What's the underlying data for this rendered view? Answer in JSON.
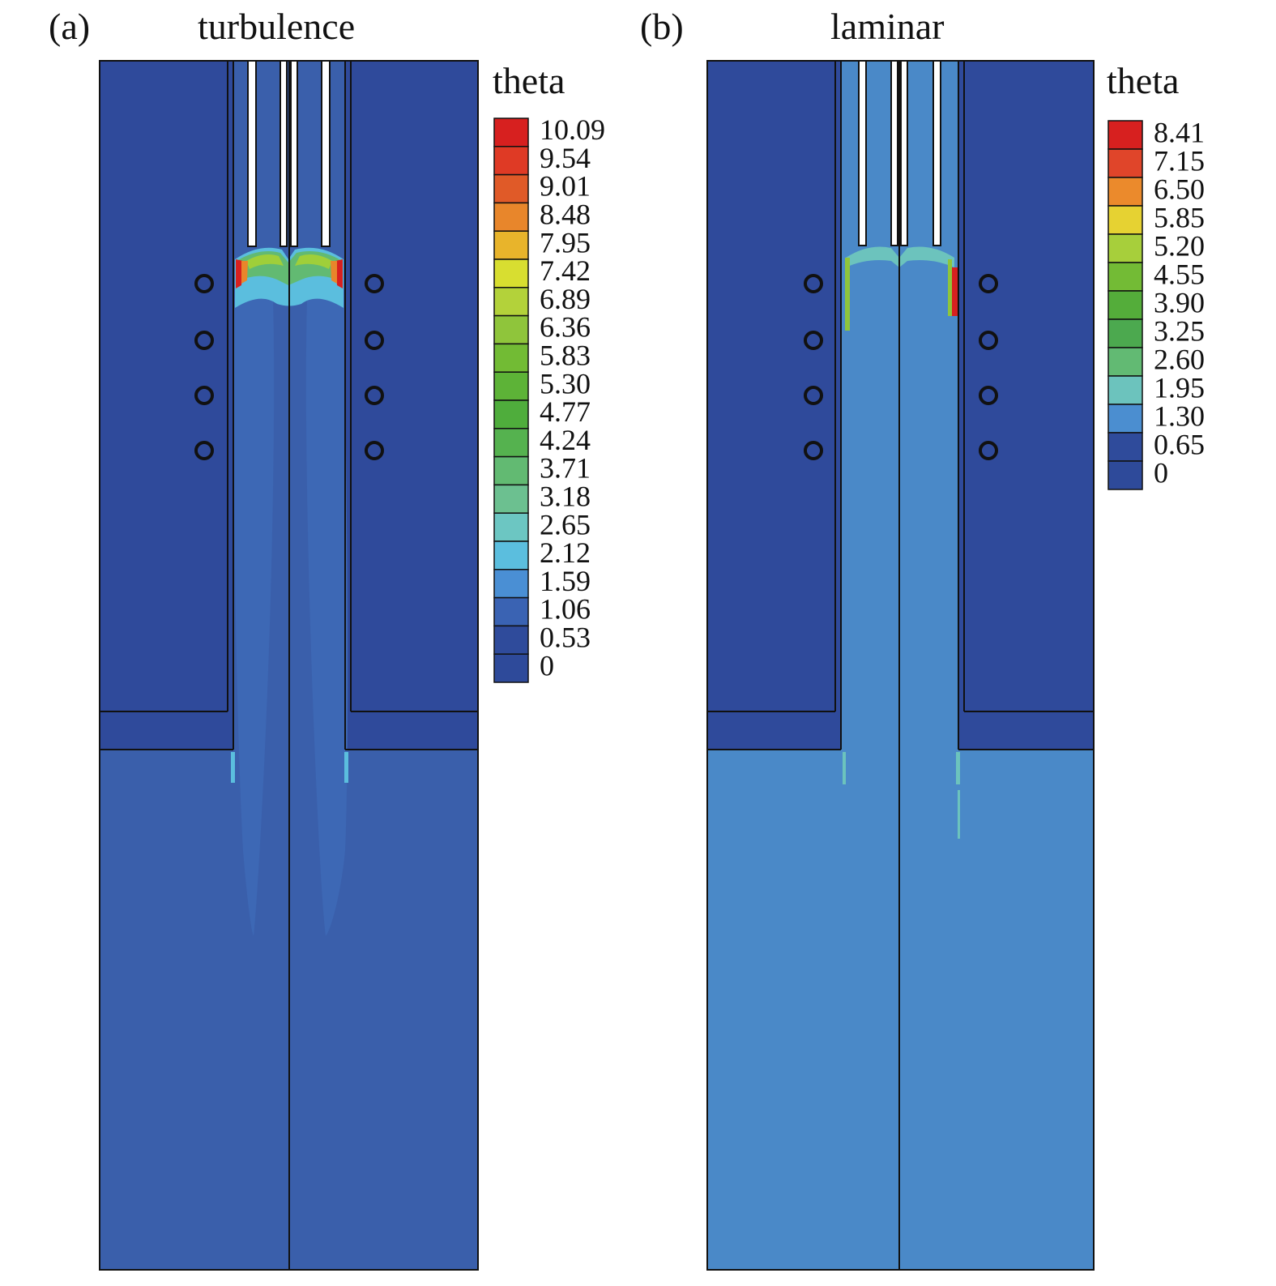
{
  "panels": [
    {
      "tag": "(a)",
      "title": "turbulence",
      "legend_title": "theta",
      "levels": [
        "10.09",
        "9.54",
        "9.01",
        "8.48",
        "7.95",
        "7.42",
        "6.89",
        "6.36",
        "5.83",
        "5.30",
        "4.77",
        "4.24",
        "3.71",
        "3.18",
        "2.65",
        "2.12",
        "1.59",
        "1.06",
        "0.53",
        "0"
      ],
      "level_colors": [
        "#d7201f",
        "#df3a25",
        "#e05a28",
        "#e8862b",
        "#e8b42b",
        "#d8de30",
        "#b3d23a",
        "#8fc53b",
        "#72bb34",
        "#5db337",
        "#4fad3c",
        "#55b24f",
        "#62ba72",
        "#6cc090",
        "#6cc6c2",
        "#5bbede",
        "#4a8fd4",
        "#3a63b3",
        "#2f4b9b",
        "#2e4a9a"
      ],
      "colors": {
        "outer": "#2f4a9b",
        "plume": "#3a60ae",
        "core": "#4a89c8",
        "wall": "#111111"
      }
    },
    {
      "tag": "(b)",
      "title": "laminar",
      "legend_title": "theta",
      "levels": [
        "8.41",
        "7.15",
        "6.50",
        "5.85",
        "5.20",
        "4.55",
        "3.90",
        "3.25",
        "2.60",
        "1.95",
        "1.30",
        "0.65",
        "0"
      ],
      "level_colors": [
        "#d7201f",
        "#e0452a",
        "#eb8a2c",
        "#e6d232",
        "#a7cf3b",
        "#73bb35",
        "#54ad3a",
        "#4ca94f",
        "#62ba73",
        "#6cc3bd",
        "#4b8ed0",
        "#2f4b9b",
        "#2e4a9a"
      ],
      "colors": {
        "outer": "#2f4a9b",
        "plume": "#4a8ac8",
        "core": "#5aa6d4",
        "wall": "#111111"
      }
    }
  ]
}
